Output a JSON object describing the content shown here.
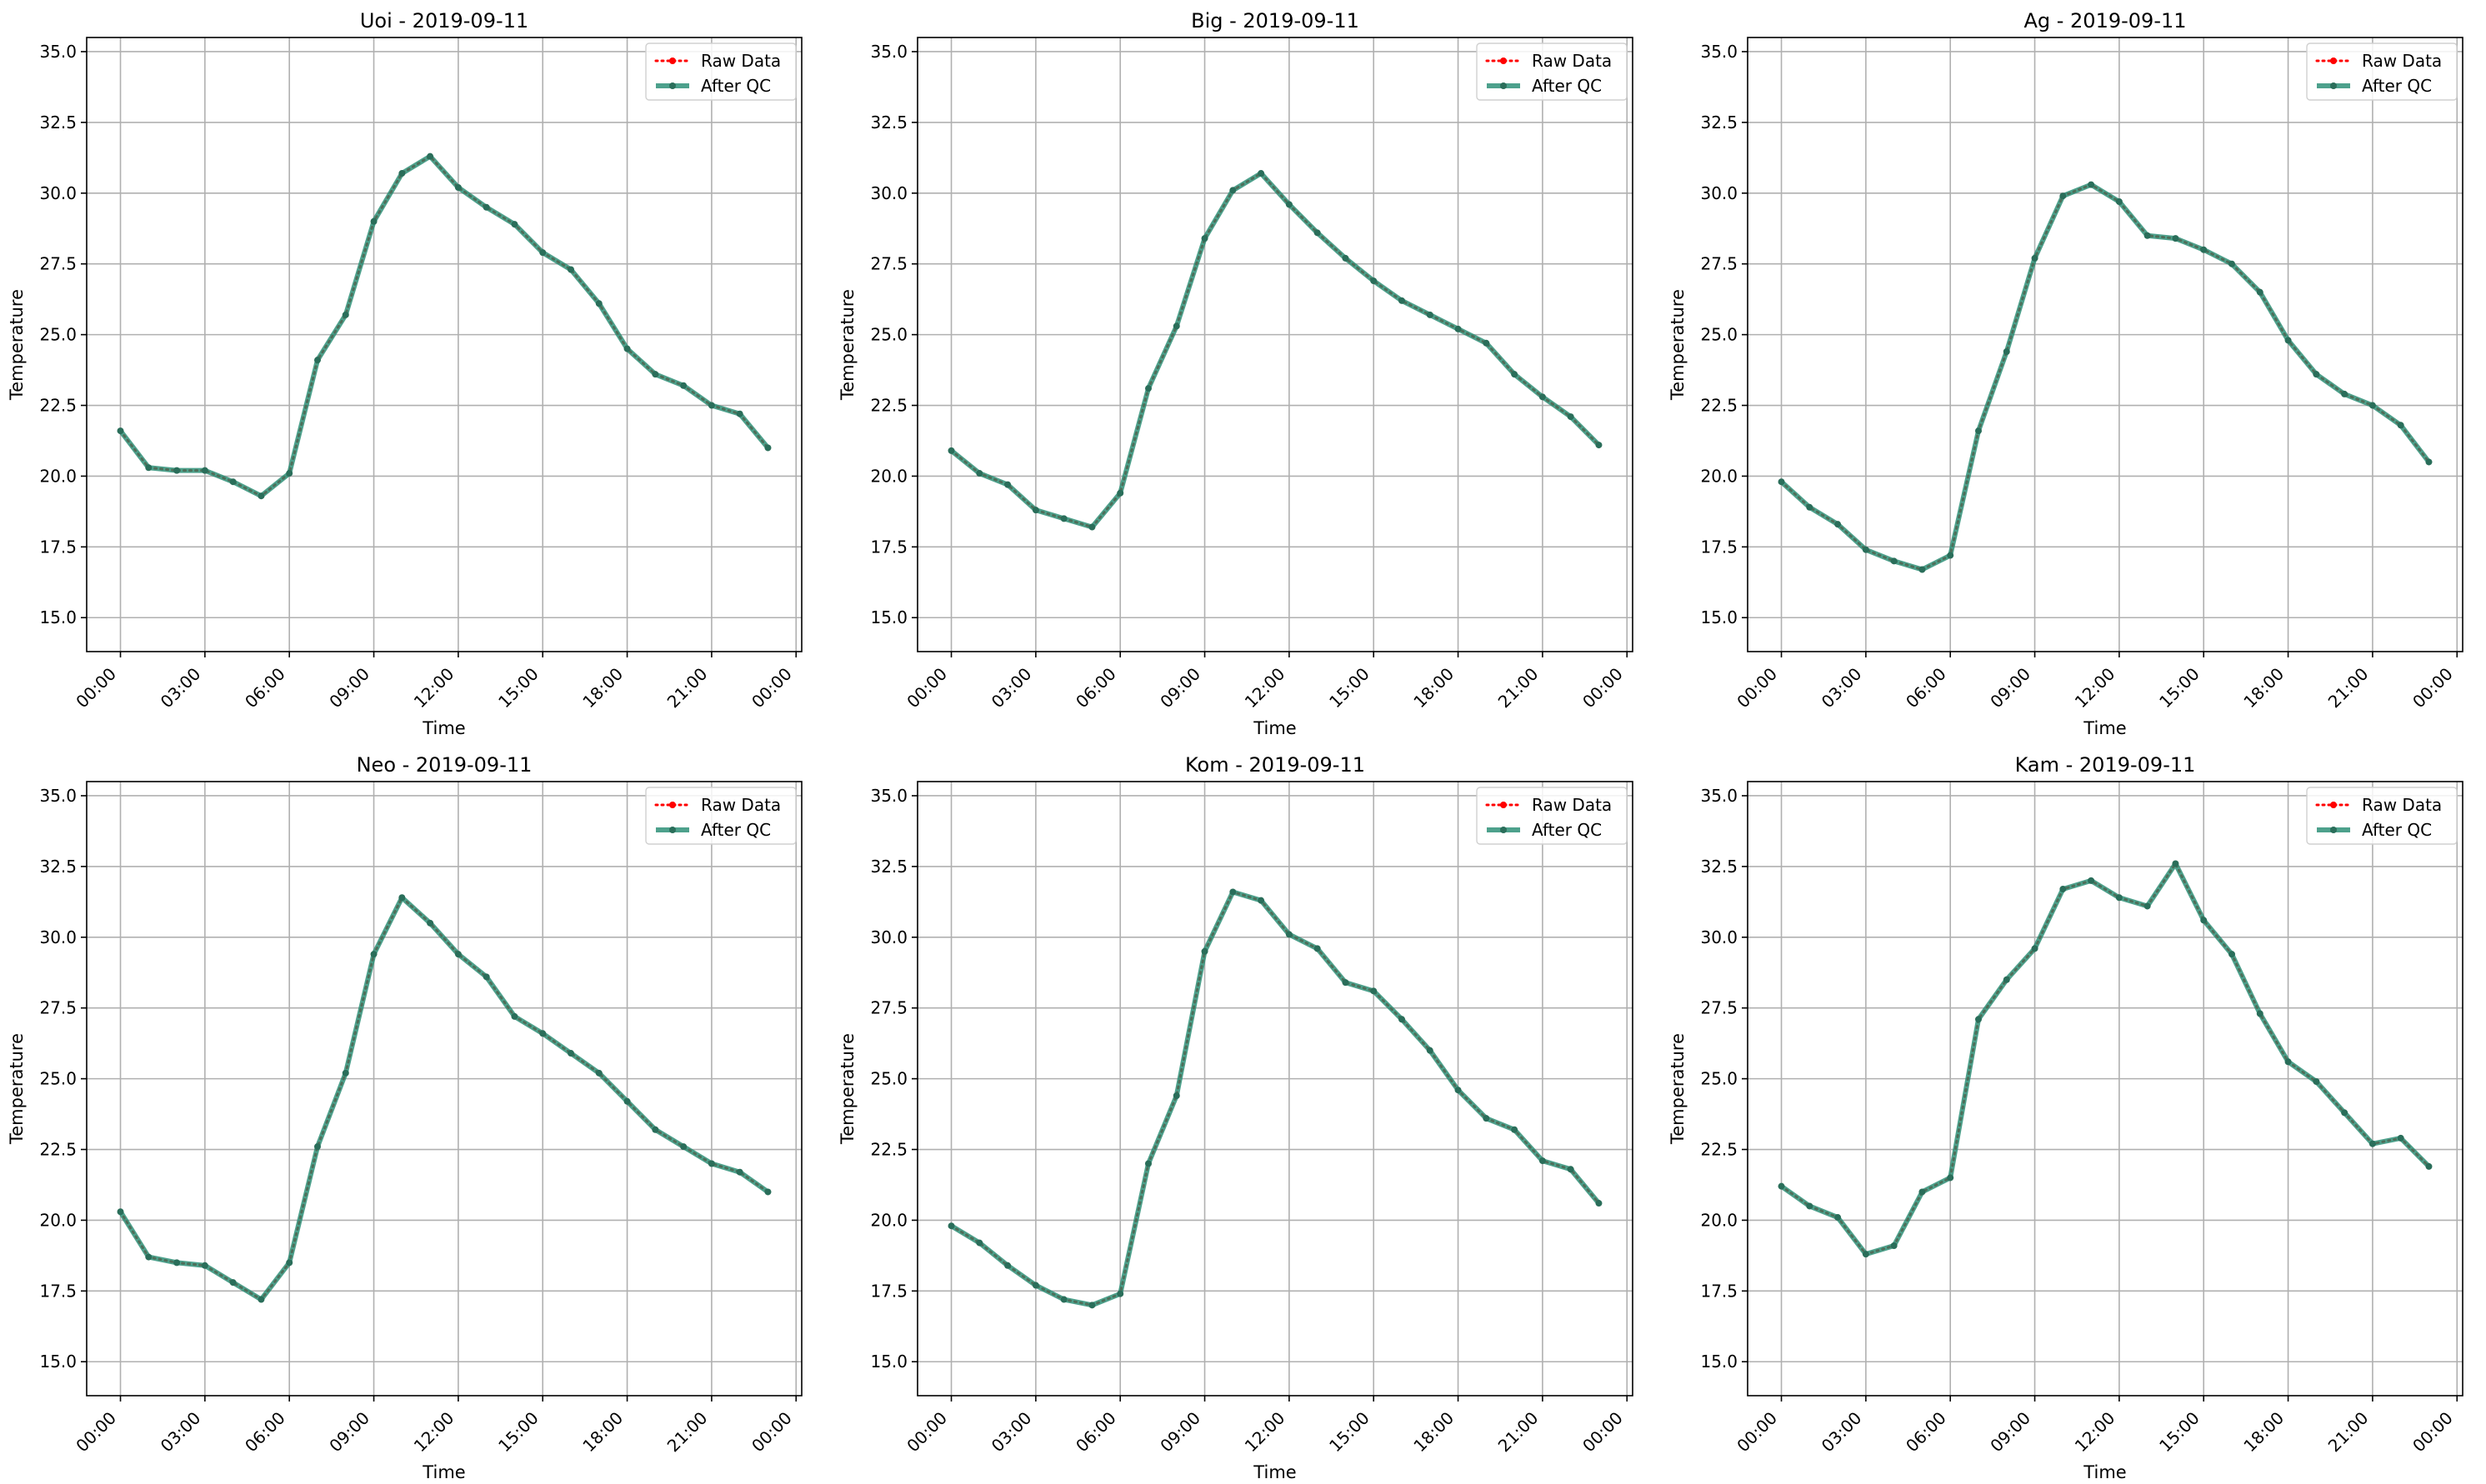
{
  "figure": {
    "legend_labels": [
      "Raw Data",
      "After QC"
    ]
  },
  "chart_data": [
    {
      "type": "line",
      "title": "Uoi - 2019-09-11",
      "xlabel": "Time",
      "ylabel": "Temperature",
      "x_ticks": [
        "00:00",
        "03:00",
        "06:00",
        "09:00",
        "12:00",
        "15:00",
        "18:00",
        "21:00",
        "00:00"
      ],
      "y_ticks": [
        "15.0",
        "17.5",
        "20.0",
        "22.5",
        "25.0",
        "27.5",
        "30.0",
        "32.5",
        "35.0"
      ],
      "ylim": [
        13.8,
        35.5
      ],
      "xlim": [
        -1.2,
        24.2
      ],
      "grid": true,
      "legend_position": "top-right",
      "x": [
        0,
        1,
        2,
        3,
        4,
        5,
        6,
        7,
        8,
        9,
        10,
        11,
        12,
        13,
        14,
        15,
        16,
        17,
        18,
        19,
        20,
        21,
        22,
        23
      ],
      "series": [
        {
          "name": "Raw Data",
          "values": [
            21.6,
            20.3,
            20.2,
            20.2,
            19.8,
            19.3,
            20.1,
            24.1,
            25.7,
            29.0,
            30.7,
            31.3,
            30.2,
            29.5,
            28.9,
            27.9,
            27.3,
            26.1,
            24.5,
            23.6,
            23.2,
            22.5,
            22.2,
            21.0
          ]
        },
        {
          "name": "After QC",
          "values": [
            21.6,
            20.3,
            20.2,
            20.2,
            19.8,
            19.3,
            20.1,
            24.1,
            25.7,
            29.0,
            30.7,
            31.3,
            30.2,
            29.5,
            28.9,
            27.9,
            27.3,
            26.1,
            24.5,
            23.6,
            23.2,
            22.5,
            22.2,
            21.0
          ]
        }
      ],
      "colors": {
        "raw": "#ff0000",
        "qc": "#218a6f"
      }
    },
    {
      "type": "line",
      "title": "Big - 2019-09-11",
      "xlabel": "Time",
      "ylabel": "Temperature",
      "x_ticks": [
        "00:00",
        "03:00",
        "06:00",
        "09:00",
        "12:00",
        "15:00",
        "18:00",
        "21:00",
        "00:00"
      ],
      "y_ticks": [
        "15.0",
        "17.5",
        "20.0",
        "22.5",
        "25.0",
        "27.5",
        "30.0",
        "32.5",
        "35.0"
      ],
      "ylim": [
        13.8,
        35.5
      ],
      "xlim": [
        -1.2,
        24.2
      ],
      "grid": true,
      "legend_position": "top-right",
      "x": [
        0,
        1,
        2,
        3,
        4,
        5,
        6,
        7,
        8,
        9,
        10,
        11,
        12,
        13,
        14,
        15,
        16,
        17,
        18,
        19,
        20,
        21,
        22,
        23
      ],
      "series": [
        {
          "name": "Raw Data",
          "values": [
            20.9,
            20.1,
            19.7,
            18.8,
            18.5,
            18.2,
            19.4,
            23.1,
            25.3,
            28.4,
            30.1,
            30.7,
            29.6,
            28.6,
            27.7,
            26.9,
            26.2,
            25.7,
            25.2,
            24.7,
            23.6,
            22.8,
            22.1,
            21.1
          ]
        },
        {
          "name": "After QC",
          "values": [
            20.9,
            20.1,
            19.7,
            18.8,
            18.5,
            18.2,
            19.4,
            23.1,
            25.3,
            28.4,
            30.1,
            30.7,
            29.6,
            28.6,
            27.7,
            26.9,
            26.2,
            25.7,
            25.2,
            24.7,
            23.6,
            22.8,
            22.1,
            21.1
          ]
        }
      ],
      "colors": {
        "raw": "#ff0000",
        "qc": "#218a6f"
      }
    },
    {
      "type": "line",
      "title": "Ag - 2019-09-11",
      "xlabel": "Time",
      "ylabel": "Temperature",
      "x_ticks": [
        "00:00",
        "03:00",
        "06:00",
        "09:00",
        "12:00",
        "15:00",
        "18:00",
        "21:00",
        "00:00"
      ],
      "y_ticks": [
        "15.0",
        "17.5",
        "20.0",
        "22.5",
        "25.0",
        "27.5",
        "30.0",
        "32.5",
        "35.0"
      ],
      "ylim": [
        13.8,
        35.5
      ],
      "xlim": [
        -1.2,
        24.2
      ],
      "grid": true,
      "legend_position": "top-right",
      "x": [
        0,
        1,
        2,
        3,
        4,
        5,
        6,
        7,
        8,
        9,
        10,
        11,
        12,
        13,
        14,
        15,
        16,
        17,
        18,
        19,
        20,
        21,
        22,
        23
      ],
      "series": [
        {
          "name": "Raw Data",
          "values": [
            19.8,
            18.9,
            18.3,
            17.4,
            17.0,
            16.7,
            17.2,
            21.6,
            24.4,
            27.7,
            29.9,
            30.3,
            29.7,
            28.5,
            28.4,
            28.0,
            27.5,
            26.5,
            24.8,
            23.6,
            22.9,
            22.5,
            21.8,
            20.5
          ]
        },
        {
          "name": "After QC",
          "values": [
            19.8,
            18.9,
            18.3,
            17.4,
            17.0,
            16.7,
            17.2,
            21.6,
            24.4,
            27.7,
            29.9,
            30.3,
            29.7,
            28.5,
            28.4,
            28.0,
            27.5,
            26.5,
            24.8,
            23.6,
            22.9,
            22.5,
            21.8,
            20.5
          ]
        }
      ],
      "colors": {
        "raw": "#ff0000",
        "qc": "#218a6f"
      }
    },
    {
      "type": "line",
      "title": "Neo - 2019-09-11",
      "xlabel": "Time",
      "ylabel": "Temperature",
      "x_ticks": [
        "00:00",
        "03:00",
        "06:00",
        "09:00",
        "12:00",
        "15:00",
        "18:00",
        "21:00",
        "00:00"
      ],
      "y_ticks": [
        "15.0",
        "17.5",
        "20.0",
        "22.5",
        "25.0",
        "27.5",
        "30.0",
        "32.5",
        "35.0"
      ],
      "ylim": [
        13.8,
        35.5
      ],
      "xlim": [
        -1.2,
        24.2
      ],
      "grid": true,
      "legend_position": "top-right",
      "x": [
        0,
        1,
        2,
        3,
        4,
        5,
        6,
        7,
        8,
        9,
        10,
        11,
        12,
        13,
        14,
        15,
        16,
        17,
        18,
        19,
        20,
        21,
        22,
        23
      ],
      "series": [
        {
          "name": "Raw Data",
          "values": [
            20.3,
            18.7,
            18.5,
            18.4,
            17.8,
            17.2,
            18.5,
            22.6,
            25.2,
            29.4,
            31.4,
            30.5,
            29.4,
            28.6,
            27.2,
            26.6,
            25.9,
            25.2,
            24.2,
            23.2,
            22.6,
            22.0,
            21.7,
            21.0
          ]
        },
        {
          "name": "After QC",
          "values": [
            20.3,
            18.7,
            18.5,
            18.4,
            17.8,
            17.2,
            18.5,
            22.6,
            25.2,
            29.4,
            31.4,
            30.5,
            29.4,
            28.6,
            27.2,
            26.6,
            25.9,
            25.2,
            24.2,
            23.2,
            22.6,
            22.0,
            21.7,
            21.0
          ]
        }
      ],
      "colors": {
        "raw": "#ff0000",
        "qc": "#218a6f"
      }
    },
    {
      "type": "line",
      "title": "Kom - 2019-09-11",
      "xlabel": "Time",
      "ylabel": "Temperature",
      "x_ticks": [
        "00:00",
        "03:00",
        "06:00",
        "09:00",
        "12:00",
        "15:00",
        "18:00",
        "21:00",
        "00:00"
      ],
      "y_ticks": [
        "15.0",
        "17.5",
        "20.0",
        "22.5",
        "25.0",
        "27.5",
        "30.0",
        "32.5",
        "35.0"
      ],
      "ylim": [
        13.8,
        35.5
      ],
      "xlim": [
        -1.2,
        24.2
      ],
      "grid": true,
      "legend_position": "top-right",
      "x": [
        0,
        1,
        2,
        3,
        4,
        5,
        6,
        7,
        8,
        9,
        10,
        11,
        12,
        13,
        14,
        15,
        16,
        17,
        18,
        19,
        20,
        21,
        22,
        23
      ],
      "series": [
        {
          "name": "Raw Data",
          "values": [
            19.8,
            19.2,
            18.4,
            17.7,
            17.2,
            17.0,
            17.4,
            22.0,
            24.4,
            29.5,
            31.6,
            31.3,
            30.1,
            29.6,
            28.4,
            28.1,
            27.1,
            26.0,
            24.6,
            23.6,
            23.2,
            22.1,
            21.8,
            20.6
          ]
        },
        {
          "name": "After QC",
          "values": [
            19.8,
            19.2,
            18.4,
            17.7,
            17.2,
            17.0,
            17.4,
            22.0,
            24.4,
            29.5,
            31.6,
            31.3,
            30.1,
            29.6,
            28.4,
            28.1,
            27.1,
            26.0,
            24.6,
            23.6,
            23.2,
            22.1,
            21.8,
            20.6
          ]
        }
      ],
      "colors": {
        "raw": "#ff0000",
        "qc": "#218a6f"
      }
    },
    {
      "type": "line",
      "title": "Kam - 2019-09-11",
      "xlabel": "Time",
      "ylabel": "Temperature",
      "x_ticks": [
        "00:00",
        "03:00",
        "06:00",
        "09:00",
        "12:00",
        "15:00",
        "18:00",
        "21:00",
        "00:00"
      ],
      "y_ticks": [
        "15.0",
        "17.5",
        "20.0",
        "22.5",
        "25.0",
        "27.5",
        "30.0",
        "32.5",
        "35.0"
      ],
      "ylim": [
        13.8,
        35.5
      ],
      "xlim": [
        -1.2,
        24.2
      ],
      "grid": true,
      "legend_position": "top-right",
      "x": [
        0,
        1,
        2,
        3,
        4,
        5,
        6,
        7,
        8,
        9,
        10,
        11,
        12,
        13,
        14,
        15,
        16,
        17,
        18,
        19,
        20,
        21,
        22,
        23
      ],
      "series": [
        {
          "name": "Raw Data",
          "values": [
            21.2,
            20.5,
            20.1,
            18.8,
            19.1,
            21.0,
            21.5,
            27.1,
            28.5,
            29.6,
            31.7,
            32.0,
            31.4,
            31.1,
            32.6,
            30.6,
            29.4,
            27.3,
            25.6,
            24.9,
            23.8,
            22.7,
            22.9,
            21.9
          ]
        },
        {
          "name": "After QC",
          "values": [
            21.2,
            20.5,
            20.1,
            18.8,
            19.1,
            21.0,
            21.5,
            27.1,
            28.5,
            29.6,
            31.7,
            32.0,
            31.4,
            31.1,
            32.6,
            30.6,
            29.4,
            27.3,
            25.6,
            24.9,
            23.8,
            22.7,
            22.9,
            21.9
          ]
        }
      ],
      "colors": {
        "raw": "#ff0000",
        "qc": "#218a6f"
      }
    }
  ]
}
